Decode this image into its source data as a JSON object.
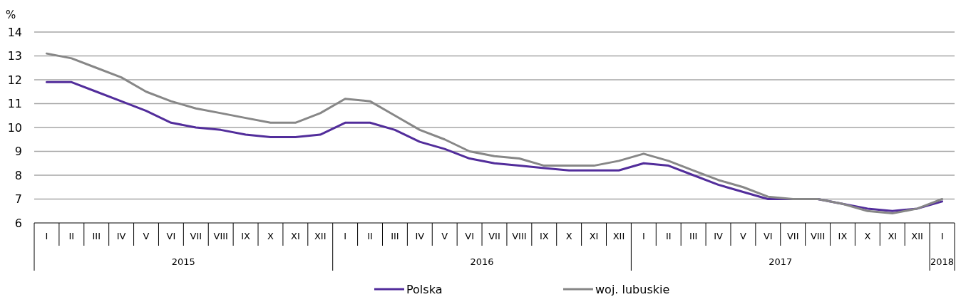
{
  "chart_data": {
    "type": "line",
    "ylabel": "%",
    "categories": [
      "I",
      "II",
      "III",
      "IV",
      "V",
      "VI",
      "VII",
      "VIII",
      "IX",
      "X",
      "XI",
      "XII",
      "I",
      "II",
      "III",
      "IV",
      "V",
      "VI",
      "VII",
      "VIII",
      "IX",
      "X",
      "XI",
      "XII",
      "I",
      "II",
      "III",
      "IV",
      "V",
      "VI",
      "VII",
      "VIII",
      "IX",
      "X",
      "XI",
      "XII",
      "I"
    ],
    "series": [
      {
        "name": "Polska",
        "color": "#522d9b",
        "values": [
          11.9,
          11.9,
          11.5,
          11.1,
          10.7,
          10.2,
          10.0,
          9.9,
          9.7,
          9.6,
          9.6,
          9.7,
          10.2,
          10.2,
          9.9,
          9.4,
          9.1,
          8.7,
          8.5,
          8.4,
          8.3,
          8.2,
          8.2,
          8.2,
          8.5,
          8.4,
          8.0,
          7.6,
          7.3,
          7.0,
          7.0,
          7.0,
          6.8,
          6.6,
          6.5,
          6.6,
          6.9
        ]
      },
      {
        "name": "woj. lubuskie",
        "color": "#878787",
        "values": [
          13.1,
          12.9,
          12.5,
          12.1,
          11.5,
          11.1,
          10.8,
          10.6,
          10.4,
          10.2,
          10.2,
          10.6,
          11.2,
          11.1,
          10.5,
          9.9,
          9.5,
          9.0,
          8.8,
          8.7,
          8.4,
          8.4,
          8.4,
          8.6,
          8.9,
          8.6,
          8.2,
          7.8,
          7.5,
          7.1,
          7.0,
          7.0,
          6.8,
          6.5,
          6.4,
          6.6,
          7.0
        ]
      }
    ],
    "ylim": [
      6,
      14
    ],
    "yticks": [
      6,
      7,
      8,
      9,
      10,
      11,
      12,
      13,
      14
    ],
    "grid": "y",
    "legend": "bottom",
    "marker": "none",
    "line_style": "solid",
    "annotations": [
      "2015",
      "2016",
      "2017",
      "2018"
    ]
  }
}
